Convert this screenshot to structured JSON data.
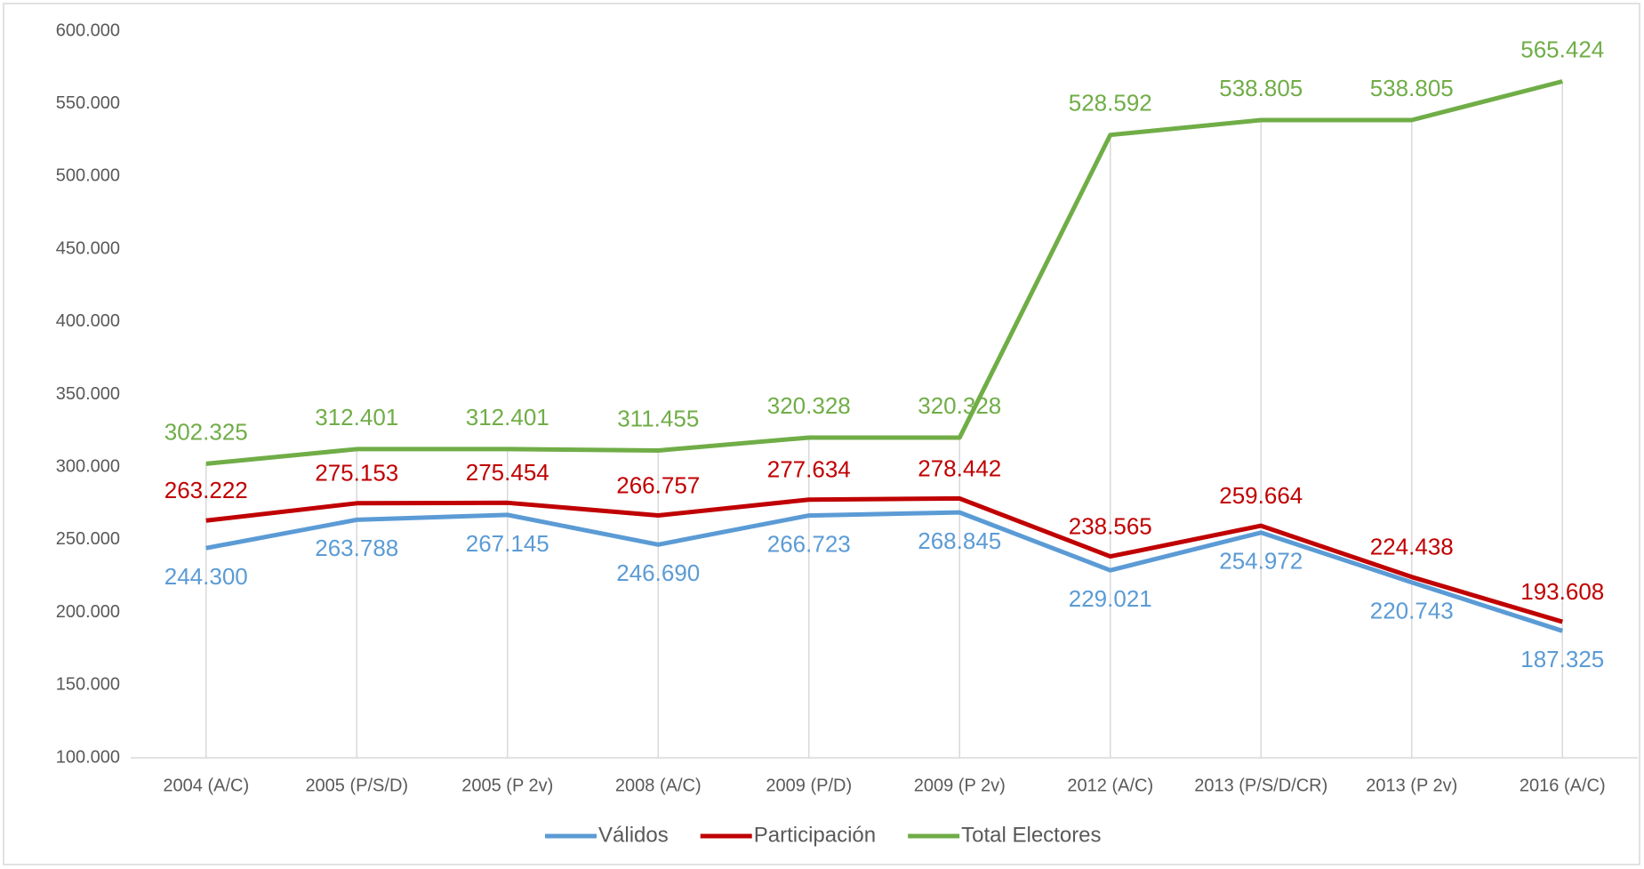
{
  "chart_data": {
    "type": "line",
    "categories": [
      "2004 (A/C)",
      "2005 (P/S/D)",
      "2005 (P 2v)",
      "2008 (A/C)",
      "2009 (P/D)",
      "2009 (P 2v)",
      "2012 (A/C)",
      "2013 (P/S/D/CR)",
      "2013 (P 2v)",
      "2016 (A/C)"
    ],
    "series": [
      {
        "name": "Válidos",
        "color": "#5b9bd5",
        "values": [
          244300,
          263788,
          267145,
          246690,
          266723,
          268845,
          229021,
          254972,
          220743,
          187325
        ],
        "value_labels": [
          "244.300",
          "263.788",
          "267.145",
          "246.690",
          "266.723",
          "268.845",
          "229.021",
          "254.972",
          "220.743",
          "187.325"
        ]
      },
      {
        "name": "Participación",
        "color": "#c00000",
        "values": [
          263222,
          275153,
          275454,
          266757,
          277634,
          278442,
          238565,
          259664,
          224438,
          193608
        ],
        "value_labels": [
          "263.222",
          "275.153",
          "275.454",
          "266.757",
          "277.634",
          "278.442",
          "238.565",
          "259.664",
          "224.438",
          "193.608"
        ]
      },
      {
        "name": "Total Electores",
        "color": "#70ad47",
        "values": [
          302325,
          312401,
          312401,
          311455,
          320328,
          320328,
          528592,
          538805,
          538805,
          565424
        ],
        "value_labels": [
          "302.325",
          "312.401",
          "312.401",
          "311.455",
          "320.328",
          "320.328",
          "528.592",
          "538.805",
          "538.805",
          "565.424"
        ]
      }
    ],
    "ylim": [
      100000,
      600000
    ],
    "yticks": [
      {
        "value": 100000,
        "label": "100.000"
      },
      {
        "value": 150000,
        "label": "150.000"
      },
      {
        "value": 200000,
        "label": "200.000"
      },
      {
        "value": 250000,
        "label": "250.000"
      },
      {
        "value": 300000,
        "label": "300.000"
      },
      {
        "value": 350000,
        "label": "350.000"
      },
      {
        "value": 400000,
        "label": "400.000"
      },
      {
        "value": 450000,
        "label": "450.000"
      },
      {
        "value": 500000,
        "label": "500.000"
      },
      {
        "value": 550000,
        "label": "550.000"
      },
      {
        "value": 600000,
        "label": "600.000"
      }
    ],
    "legend": "bottom"
  }
}
